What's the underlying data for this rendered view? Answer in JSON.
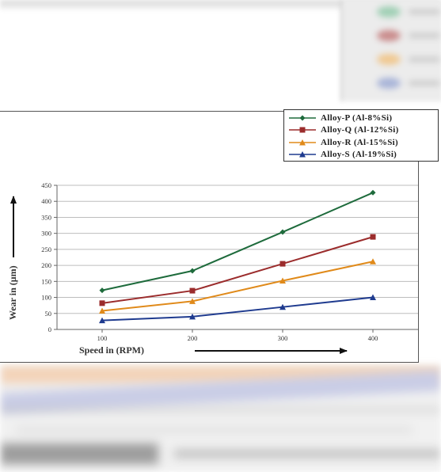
{
  "legend": [
    {
      "label": "Alloy-P (Al-8%Si)",
      "color": "#1e6b3c",
      "marker": "diamond"
    },
    {
      "label": "Alloy-Q (Al-12%Si)",
      "color": "#9b2c2c",
      "marker": "square"
    },
    {
      "label": "Alloy-R (Al-15%Si)",
      "color": "#e08a1a",
      "marker": "triangle"
    },
    {
      "label": "Alloy-S (Al-19%Si)",
      "color": "#1f3b8f",
      "marker": "triangle"
    }
  ],
  "chart_data": {
    "type": "line",
    "x": [
      100,
      200,
      300,
      400
    ],
    "xlabel": "Speed in (RPM)",
    "ylabel": "Wear in (μm)",
    "ylim": [
      0,
      450
    ],
    "yticks": [
      0,
      50,
      100,
      150,
      200,
      250,
      300,
      350,
      400,
      450
    ],
    "grid": true,
    "legend_position": "top-right",
    "series": [
      {
        "name": "Alloy-P (Al-8%Si)",
        "color": "#1e6b3c",
        "marker": "diamond",
        "values": [
          122,
          183,
          304,
          427
        ]
      },
      {
        "name": "Alloy-Q (Al-12%Si)",
        "color": "#9b2c2c",
        "marker": "square",
        "values": [
          82,
          121,
          205,
          289
        ]
      },
      {
        "name": "Alloy-R (Al-15%Si)",
        "color": "#e08a1a",
        "marker": "triangle",
        "values": [
          58,
          88,
          152,
          212
        ]
      },
      {
        "name": "Alloy-S (Al-19%Si)",
        "color": "#1f3b8f",
        "marker": "triangle",
        "values": [
          28,
          40,
          70,
          100
        ]
      }
    ]
  }
}
